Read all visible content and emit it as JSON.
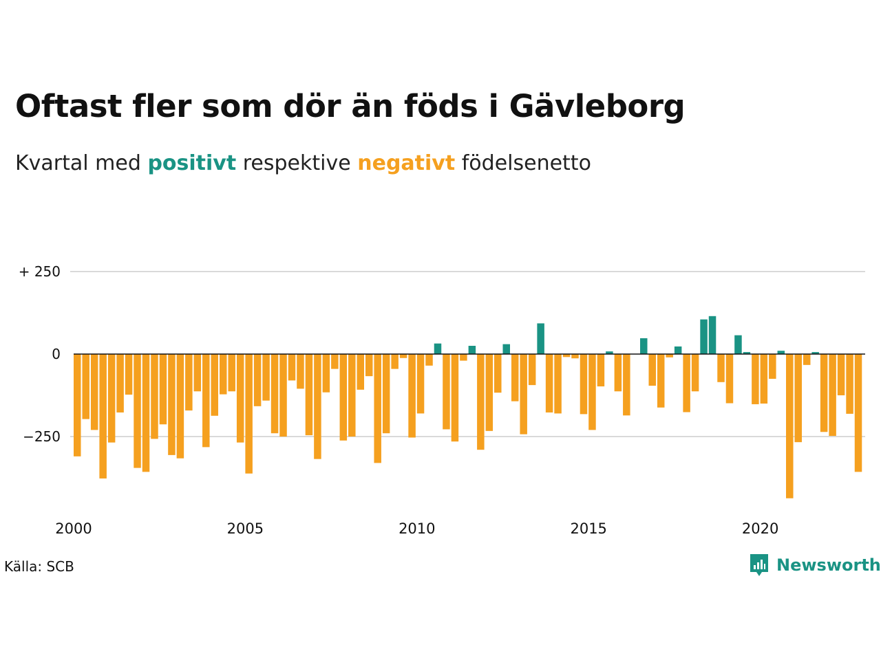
{
  "title": "Oftast fler som dör än föds i Gävleborg",
  "subtitle": {
    "prefix": "Kvartal med",
    "positive_word": "positivt",
    "middle": "respektive",
    "negative_word": "negativt",
    "suffix": "födelsenetto"
  },
  "colors": {
    "positive": "#1a9384",
    "negative": "#f5a01f",
    "grid": "#d9d9d9",
    "zero_line": "#111111"
  },
  "source": "Källa: SCB",
  "brand": {
    "name": "Newsworthy",
    "icon": "newsworthy-logo-icon"
  },
  "chart_data": {
    "type": "bar",
    "x_unit": "quarter",
    "x_start": "2000 Q1",
    "ylim": [
      -440,
      250
    ],
    "y_ticks": [
      250,
      0,
      -250
    ],
    "y_tick_labels": [
      "+ 250",
      "0",
      "−250"
    ],
    "x_ticks": [
      2000,
      2005,
      2010,
      2015,
      2020
    ],
    "x_tick_labels": [
      "2000",
      "2005",
      "2010",
      "2015",
      "2020"
    ],
    "grid": true,
    "values": [
      -310,
      -197,
      -230,
      -377,
      -268,
      -177,
      -123,
      -345,
      -357,
      -257,
      -213,
      -306,
      -316,
      -171,
      -113,
      -282,
      -187,
      -122,
      -113,
      -268,
      -362,
      -158,
      -141,
      -240,
      -250,
      -80,
      -105,
      -246,
      -318,
      -116,
      -45,
      -262,
      -250,
      -108,
      -67,
      -330,
      -240,
      -45,
      -12,
      -253,
      -180,
      -35,
      32,
      -228,
      -265,
      -20,
      25,
      -290,
      -233,
      -117,
      30,
      -143,
      -243,
      -94,
      93,
      -177,
      -180,
      -9,
      -13,
      -182,
      -230,
      -98,
      8,
      -113,
      -186,
      0,
      48,
      -96,
      -162,
      -10,
      23,
      -176,
      -113,
      105,
      115,
      -85,
      -149,
      57,
      6,
      -152,
      -150,
      -75,
      10,
      -437,
      -267,
      -33,
      6,
      -236,
      -248,
      -125,
      -181,
      -357
    ]
  }
}
